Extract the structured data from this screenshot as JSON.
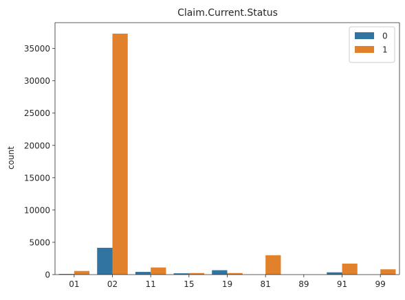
{
  "colors": {
    "series_0": "#3274a1",
    "series_1": "#e1812c",
    "axis": "#262626",
    "legend_border": "#cccccc"
  },
  "chart_data": {
    "type": "bar",
    "title": "Claim.Current.Status",
    "xlabel": "",
    "ylabel": "count",
    "categories": [
      "01",
      "02",
      "11",
      "15",
      "19",
      "81",
      "89",
      "91",
      "99"
    ],
    "series": [
      {
        "name": "0",
        "values": [
          100,
          4150,
          420,
          200,
          680,
          0,
          0,
          350,
          0
        ]
      },
      {
        "name": "1",
        "values": [
          560,
          37300,
          1100,
          240,
          240,
          3000,
          0,
          1700,
          820
        ]
      }
    ],
    "ylim": [
      0,
      39000
    ],
    "yticks": [
      0,
      5000,
      10000,
      15000,
      20000,
      25000,
      30000,
      35000
    ],
    "grid": false,
    "legend_position": "top-right"
  }
}
